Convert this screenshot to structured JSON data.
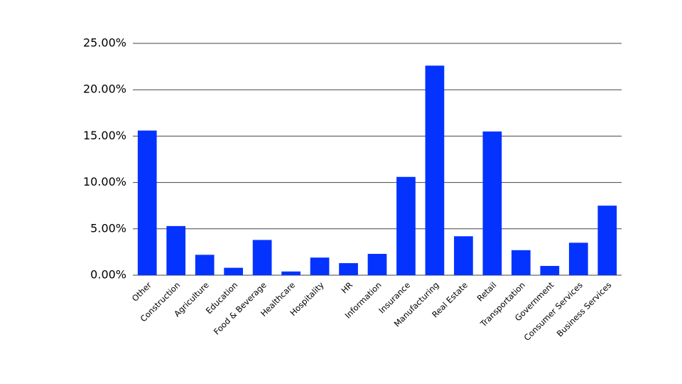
{
  "chart_data": {
    "type": "bar",
    "categories": [
      "Other",
      "Construction",
      "Agriculture",
      "Education",
      "Food & Beverage",
      "Healthcare",
      "Hospitality",
      "HR",
      "Information",
      "Insurance",
      "Manufacturing",
      "Real Estate",
      "Retail",
      "Transportation",
      "Government",
      "Consumer Services",
      "Business Services"
    ],
    "values": [
      15.6,
      5.3,
      2.2,
      0.8,
      3.8,
      0.4,
      1.9,
      1.3,
      2.3,
      10.6,
      22.6,
      4.2,
      15.5,
      2.7,
      1.0,
      3.5,
      7.5
    ],
    "color": "#0433ff",
    "ylim": [
      0,
      25
    ],
    "yticks": [
      {
        "value": 0,
        "label": "0.00%"
      },
      {
        "value": 5,
        "label": "5.00%"
      },
      {
        "value": 10,
        "label": "10.00%"
      },
      {
        "value": 15,
        "label": "15.00%"
      },
      {
        "value": 20,
        "label": "20.00%"
      },
      {
        "value": 25,
        "label": "25.00%"
      }
    ],
    "grid": true
  }
}
